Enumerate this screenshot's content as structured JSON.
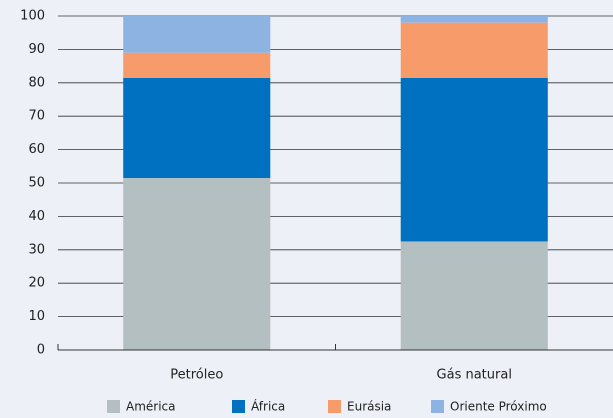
{
  "chart_data": {
    "type": "stacked_bar",
    "categories": [
      "Petróleo",
      "Gás natural"
    ],
    "series": [
      {
        "name": "América",
        "color": "#b3bfc1",
        "values": [
          51.5,
          32.5
        ]
      },
      {
        "name": "África",
        "color": "#0070c0",
        "values": [
          30,
          49
        ]
      },
      {
        "name": "Eurásia",
        "color": "#f79b6b",
        "values": [
          7.5,
          16.5
        ]
      },
      {
        "name": "Oriente Próximo",
        "color": "#8db3e2",
        "values": [
          11,
          2
        ]
      }
    ],
    "ylim": [
      0,
      100
    ],
    "yticks": [
      0,
      10,
      20,
      30,
      40,
      50,
      60,
      70,
      80,
      90,
      100
    ],
    "grid": true
  }
}
